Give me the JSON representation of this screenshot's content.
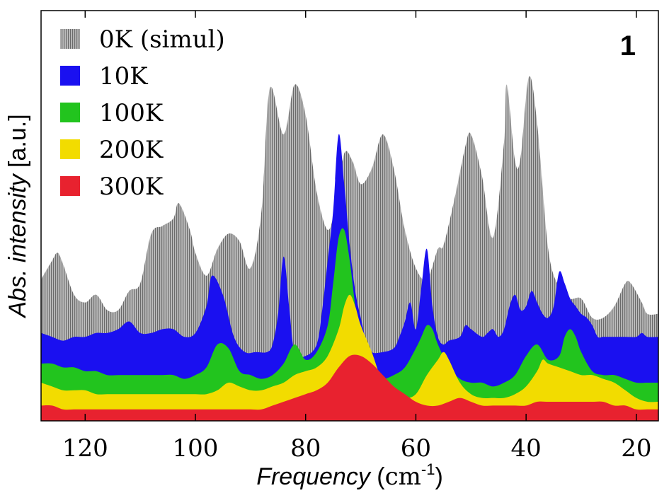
{
  "chart_data": {
    "type": "area",
    "panel_label": "1",
    "xlabel": "Frequency",
    "xunit_base": "cm",
    "xunit_exp": "-1",
    "ylabel": "Abs. intensity",
    "yunit": "[a.u.]",
    "xlim": [
      128,
      16
    ],
    "ylim": [
      0,
      1.0
    ],
    "x_reversed": true,
    "xticks": [
      120,
      100,
      80,
      60,
      40,
      20
    ],
    "yticks_shown": false,
    "legend_position": "top-left",
    "series": [
      {
        "name": "0K (simul)",
        "color": "#8c8c8c",
        "hatched": true,
        "x": [
          128,
          126,
          125,
          124,
          122,
          120,
          118,
          116,
          114,
          112,
          110,
          108,
          106,
          104,
          103,
          101,
          100,
          98,
          96,
          94,
          92,
          90,
          88,
          86.5,
          84,
          82,
          80,
          78,
          76,
          74.5,
          73,
          71.5,
          70,
          68,
          66,
          64,
          62,
          60,
          58,
          56,
          55,
          53,
          51,
          50,
          48,
          46,
          44,
          43.5,
          42,
          41,
          39.5,
          38,
          36,
          34,
          32,
          30,
          28,
          26,
          24,
          22,
          21,
          19,
          18,
          16
        ],
        "values": [
          0.37,
          0.42,
          0.44,
          0.41,
          0.33,
          0.31,
          0.33,
          0.29,
          0.29,
          0.34,
          0.36,
          0.49,
          0.51,
          0.53,
          0.57,
          0.5,
          0.44,
          0.38,
          0.45,
          0.49,
          0.47,
          0.4,
          0.55,
          0.87,
          0.75,
          0.88,
          0.8,
          0.6,
          0.5,
          0.57,
          0.7,
          0.68,
          0.62,
          0.66,
          0.75,
          0.66,
          0.5,
          0.4,
          0.37,
          0.45,
          0.46,
          0.58,
          0.72,
          0.75,
          0.64,
          0.48,
          0.73,
          0.88,
          0.68,
          0.69,
          0.9,
          0.78,
          0.45,
          0.35,
          0.32,
          0.32,
          0.27,
          0.27,
          0.3,
          0.36,
          0.36,
          0.31,
          0.28,
          0.28
        ]
      },
      {
        "name": "10K",
        "color": "#1a10f0",
        "hatched": false,
        "x": [
          128,
          126,
          124,
          122,
          120,
          118,
          116,
          114,
          112,
          110,
          108,
          106,
          104,
          102,
          100,
          98,
          97,
          95,
          93,
          91,
          89,
          87,
          86,
          85,
          84,
          83,
          82,
          80,
          78,
          77,
          76,
          75,
          74,
          73,
          72,
          71,
          70,
          69,
          68,
          66,
          64,
          63,
          62,
          61,
          60,
          59,
          58,
          57,
          56,
          55,
          54,
          52,
          51,
          50,
          48,
          47,
          46,
          45,
          44,
          43,
          42,
          41,
          40,
          39,
          38,
          37,
          36,
          35,
          34,
          33,
          32,
          31,
          30,
          29,
          28,
          27,
          26,
          24,
          22,
          20,
          19,
          18,
          16
        ],
        "values": [
          0.23,
          0.22,
          0.21,
          0.22,
          0.22,
          0.23,
          0.23,
          0.24,
          0.26,
          0.23,
          0.23,
          0.24,
          0.24,
          0.22,
          0.23,
          0.3,
          0.38,
          0.33,
          0.22,
          0.18,
          0.18,
          0.18,
          0.2,
          0.28,
          0.43,
          0.3,
          0.18,
          0.17,
          0.2,
          0.29,
          0.42,
          0.55,
          0.75,
          0.62,
          0.46,
          0.34,
          0.27,
          0.21,
          0.18,
          0.18,
          0.19,
          0.22,
          0.26,
          0.31,
          0.24,
          0.35,
          0.45,
          0.3,
          0.22,
          0.2,
          0.21,
          0.22,
          0.25,
          0.24,
          0.22,
          0.23,
          0.24,
          0.22,
          0.24,
          0.3,
          0.33,
          0.29,
          0.3,
          0.34,
          0.31,
          0.28,
          0.27,
          0.3,
          0.39,
          0.36,
          0.32,
          0.3,
          0.28,
          0.27,
          0.25,
          0.22,
          0.22,
          0.22,
          0.22,
          0.22,
          0.23,
          0.22,
          0.22
        ]
      },
      {
        "name": "100K",
        "color": "#22c41e",
        "hatched": false,
        "x": [
          128,
          126,
          124,
          122,
          120,
          118,
          116,
          114,
          112,
          110,
          108,
          106,
          104,
          102,
          100,
          98,
          96,
          94,
          92,
          90,
          88,
          86,
          84,
          82,
          80,
          78,
          76,
          75,
          74,
          73,
          72,
          71,
          70,
          68,
          66,
          64,
          62,
          60,
          59,
          58,
          57,
          56,
          54,
          52,
          50,
          48,
          46,
          44,
          42,
          40,
          38,
          36,
          34,
          33,
          32,
          31,
          30,
          28,
          26,
          24,
          22,
          20,
          18,
          16
        ],
        "values": [
          0.15,
          0.15,
          0.14,
          0.14,
          0.13,
          0.13,
          0.12,
          0.12,
          0.12,
          0.12,
          0.12,
          0.12,
          0.12,
          0.11,
          0.12,
          0.14,
          0.2,
          0.19,
          0.13,
          0.12,
          0.11,
          0.12,
          0.15,
          0.2,
          0.16,
          0.18,
          0.25,
          0.36,
          0.48,
          0.5,
          0.42,
          0.3,
          0.2,
          0.12,
          0.11,
          0.12,
          0.14,
          0.19,
          0.22,
          0.25,
          0.24,
          0.2,
          0.14,
          0.11,
          0.1,
          0.1,
          0.09,
          0.1,
          0.12,
          0.17,
          0.2,
          0.16,
          0.17,
          0.22,
          0.24,
          0.22,
          0.18,
          0.13,
          0.12,
          0.12,
          0.11,
          0.1,
          0.1,
          0.1
        ]
      },
      {
        "name": "200K",
        "color": "#f2dc00",
        "hatched": false,
        "x": [
          128,
          126,
          124,
          122,
          120,
          118,
          116,
          114,
          112,
          110,
          108,
          106,
          104,
          102,
          100,
          98,
          96,
          94,
          92,
          90,
          88,
          86,
          84,
          82,
          80,
          78,
          76,
          74,
          73,
          72,
          71,
          70,
          68,
          66,
          64,
          62,
          60,
          58,
          56,
          55,
          54,
          52,
          50,
          48,
          46,
          44,
          42,
          40,
          38,
          37,
          36,
          34,
          32,
          30,
          28,
          26,
          24,
          22,
          20,
          18,
          16
        ],
        "values": [
          0.1,
          0.09,
          0.08,
          0.08,
          0.08,
          0.07,
          0.07,
          0.07,
          0.07,
          0.07,
          0.07,
          0.07,
          0.07,
          0.07,
          0.07,
          0.07,
          0.08,
          0.1,
          0.09,
          0.08,
          0.08,
          0.09,
          0.1,
          0.12,
          0.13,
          0.14,
          0.17,
          0.24,
          0.3,
          0.33,
          0.3,
          0.25,
          0.18,
          0.1,
          0.07,
          0.06,
          0.07,
          0.12,
          0.16,
          0.18,
          0.16,
          0.1,
          0.07,
          0.06,
          0.06,
          0.06,
          0.07,
          0.09,
          0.13,
          0.16,
          0.15,
          0.14,
          0.13,
          0.12,
          0.12,
          0.11,
          0.1,
          0.08,
          0.06,
          0.05,
          0.05
        ]
      },
      {
        "name": "300K",
        "color": "#e8222f",
        "hatched": false,
        "x": [
          128,
          126,
          124,
          122,
          120,
          118,
          116,
          114,
          112,
          110,
          108,
          106,
          104,
          102,
          100,
          98,
          96,
          94,
          92,
          90,
          88,
          86,
          84,
          82,
          80,
          78,
          76,
          74,
          72,
          70,
          68,
          66,
          64,
          62,
          60,
          58,
          56,
          54,
          52,
          50,
          48,
          46,
          44,
          42,
          40,
          38,
          36,
          34,
          32,
          30,
          28,
          26,
          24,
          22,
          20,
          18,
          16
        ],
        "values": [
          0.04,
          0.04,
          0.03,
          0.03,
          0.03,
          0.03,
          0.03,
          0.03,
          0.03,
          0.03,
          0.03,
          0.03,
          0.03,
          0.03,
          0.03,
          0.03,
          0.03,
          0.03,
          0.03,
          0.03,
          0.03,
          0.04,
          0.05,
          0.06,
          0.07,
          0.08,
          0.1,
          0.14,
          0.17,
          0.17,
          0.15,
          0.12,
          0.09,
          0.07,
          0.05,
          0.04,
          0.04,
          0.05,
          0.06,
          0.05,
          0.04,
          0.04,
          0.04,
          0.04,
          0.04,
          0.05,
          0.05,
          0.05,
          0.05,
          0.05,
          0.05,
          0.05,
          0.04,
          0.04,
          0.03,
          0.03,
          0.03
        ]
      }
    ]
  }
}
